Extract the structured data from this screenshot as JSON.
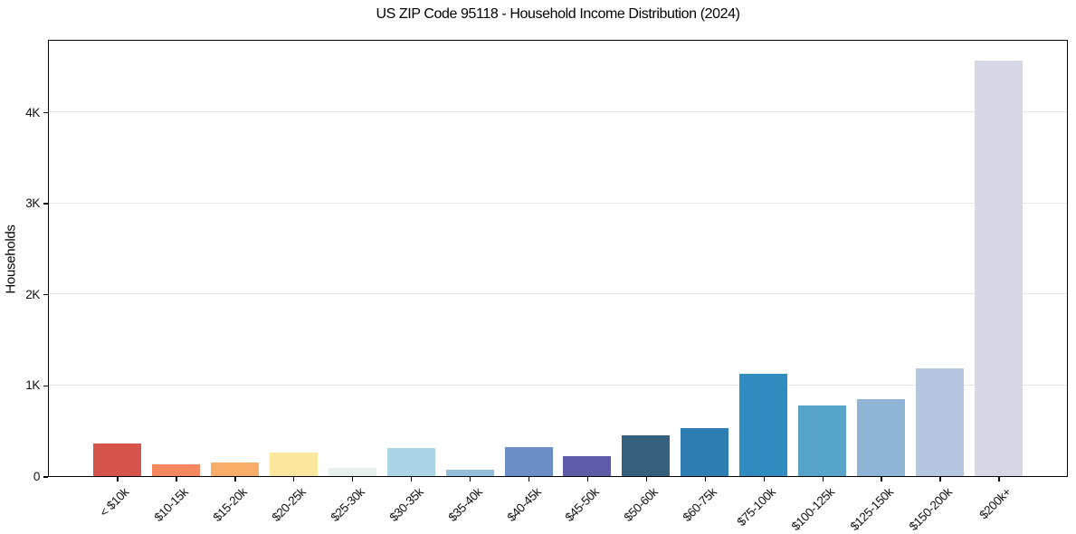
{
  "chart_data": {
    "type": "bar",
    "title": "US ZIP Code 95118 - Household Income Distribution (2024)",
    "xlabel": "",
    "ylabel": "Households",
    "ylim": [
      0,
      4800
    ],
    "grid": "horizontal",
    "legend": "none",
    "categories": [
      "< $10k",
      "$10-15k",
      "$15-20k",
      "$20-25k",
      "$25-30k",
      "$30-35k",
      "$35-40k",
      "$40-45k",
      "$45-50k",
      "$50-60k",
      "$60-75k",
      "$75-100k",
      "$100-125k",
      "$125-150k",
      "$150-200k",
      "$200k+"
    ],
    "values": [
      360,
      125,
      150,
      260,
      90,
      305,
      65,
      315,
      220,
      450,
      530,
      1120,
      775,
      840,
      1185,
      4565
    ],
    "bar_colors": [
      "#d6534c",
      "#f6875f",
      "#f8ad68",
      "#fbe79e",
      "#e8f2ec",
      "#abd4e6",
      "#92bedb",
      "#6b8ec6",
      "#5c5ca8",
      "#36617e",
      "#2f7eb3",
      "#318cc0",
      "#58a4c9",
      "#90b4d5",
      "#b5c6de",
      "#d6d8e5"
    ],
    "yticks": [
      {
        "value": 0,
        "label": "0"
      },
      {
        "value": 1000,
        "label": "1K"
      },
      {
        "value": 2000,
        "label": "2K"
      },
      {
        "value": 3000,
        "label": "3K"
      },
      {
        "value": 4000,
        "label": "4K"
      }
    ]
  }
}
